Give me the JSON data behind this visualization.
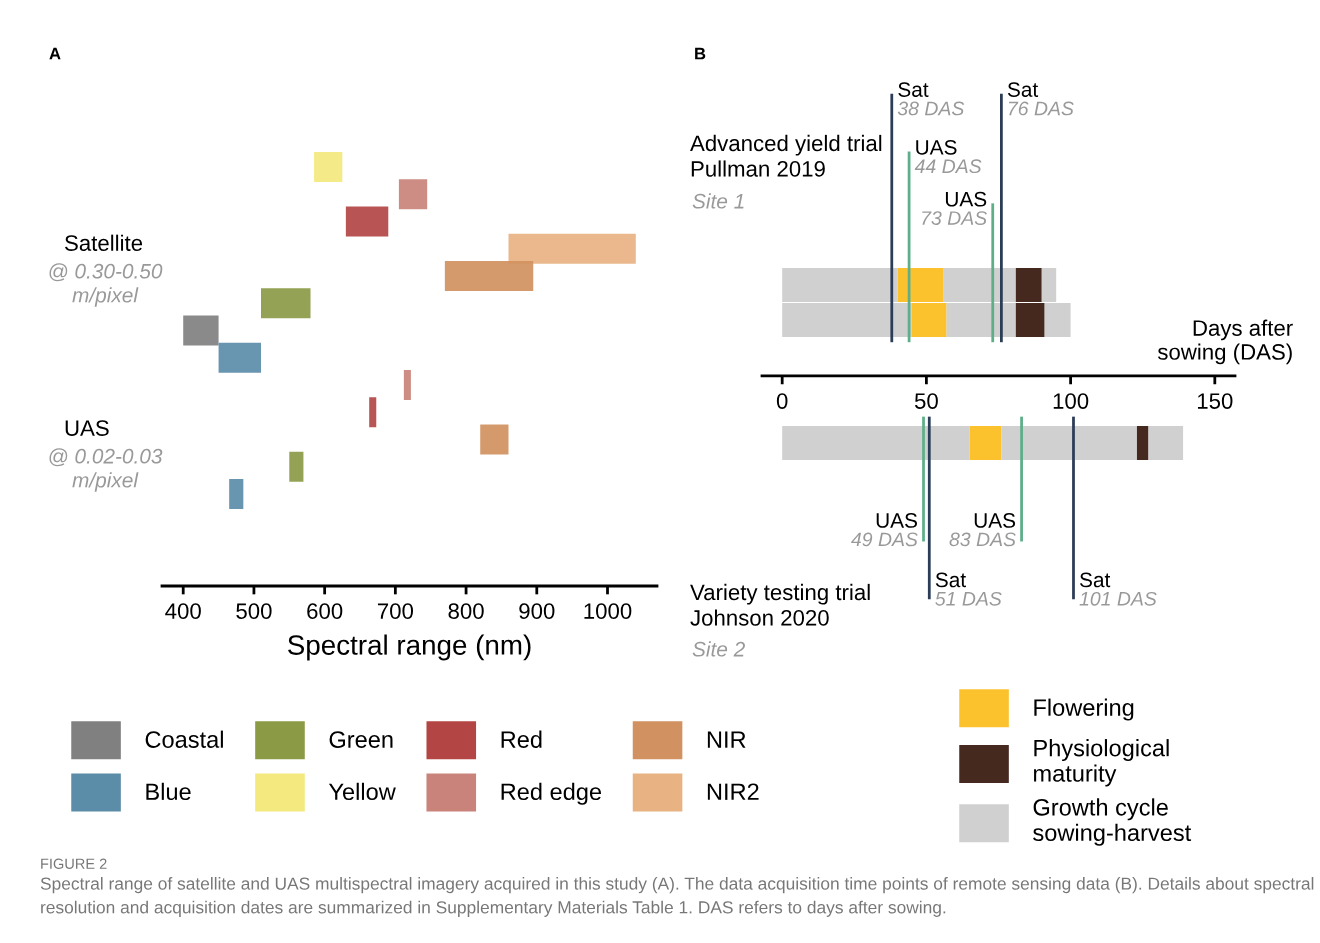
{
  "chart_data": [
    {
      "type": "bar",
      "orientation": "horizontal",
      "xlabel": "Spectral range (nm)",
      "annotations": [
        "A",
        "Satellite",
        "@ 0.30-0.50\nm/pixel",
        "UAS",
        "@ 0.02-0.03\nm/pixel"
      ],
      "categories": [
        null,
        null,
        null,
        null,
        null,
        null,
        null,
        null,
        null,
        null,
        null,
        null,
        null
      ],
      "xlim": [
        370,
        1070
      ],
      "xticks": [
        400,
        500,
        600,
        700,
        800,
        900,
        1000
      ],
      "grid": false,
      "series": [
        {
          "base": [
            585,
            705,
            630,
            860,
            770,
            510,
            400,
            450,
            712,
            663,
            820,
            550,
            465
          ],
          "values": [
            40,
            40,
            60,
            180,
            125,
            70,
            50,
            60,
            10,
            10,
            40,
            20,
            20
          ],
          "colors": [
            "#f3e97e",
            "#c9837a",
            "#b34545",
            "#e8b282",
            "#d19160",
            "#8a9a45",
            "#808080",
            "#5b8ca8",
            "#c9837a",
            "#b34545",
            "#d19160",
            "#8a9a45",
            "#5b8ca8"
          ]
        }
      ]
    },
    {
      "type": "other",
      "categories": [
        "Coastal",
        "Blue",
        "Green",
        "Yellow",
        "Red",
        "Red edge",
        "NIR",
        "NIR2"
      ],
      "colors": [
        "#808080",
        "#5b8ca8",
        "#8a9a45",
        "#f3e97e",
        "#b34545",
        "#c9837a",
        "#d19160",
        "#e8b282"
      ]
    },
    {
      "type": "bar",
      "orientation": "horizontal",
      "xlabel": "Days after\nsowing (DAS)",
      "annotations": [
        "B",
        "Advanced yield trial\nPullman 2019",
        "Site 1",
        "Variety testing trial\nJohnson 2020",
        "Site 2",
        "FIGURE 2",
        "Spectral range of satellite and UAS multispectral imagery acquired in this study (A). The data acquisition time points of remote sensing data (B). Details about spectral resolution and acquisition dates are summarized in Supplementary Materials Table 1. DAS refers to days after sowing."
      ],
      "categories": [
        null,
        null,
        null
      ],
      "xlim": [
        -7,
        157
      ],
      "xticks": [
        0,
        50,
        100,
        150
      ],
      "grid": false,
      "legend": "bottom",
      "stacked": true,
      "series": [
        {
          "name": "Growth cycle\nsowing-harvest",
          "color": "#d0d0d0",
          "values": [
            40,
            45,
            65
          ]
        },
        {
          "name": "Flowering",
          "color": "#fcc22e",
          "values": [
            16,
            12,
            11
          ]
        },
        {
          "color": "#d0d0d0",
          "values": [
            25,
            24,
            47
          ]
        },
        {
          "name": "Physiological\nmaturity",
          "color": "#45291f",
          "values": [
            9,
            10,
            4
          ]
        },
        {
          "color": "#d0d0d0",
          "values": [
            5,
            9,
            12
          ]
        }
      ],
      "ref_lines": [
        {
          "axis": "x",
          "value": 38,
          "label": "Sat\n38 DAS",
          "color": "#2c3d57"
        },
        {
          "axis": "x",
          "value": 44,
          "label": "UAS\n44 DAS",
          "color": "#5fae8a"
        },
        {
          "axis": "x",
          "value": 73,
          "label": "UAS\n73 DAS",
          "color": "#5fae8a"
        },
        {
          "axis": "x",
          "value": 76,
          "label": "Sat\n76 DAS",
          "color": "#2c3d57"
        },
        {
          "axis": "x",
          "value": 49,
          "label": "UAS\n49 DAS",
          "color": "#5fae8a"
        },
        {
          "axis": "x",
          "value": 51,
          "label": "Sat\n51 DAS",
          "color": "#2c3d57"
        },
        {
          "axis": "x",
          "value": 83,
          "label": "UAS\n83 DAS",
          "color": "#5fae8a"
        },
        {
          "axis": "x",
          "value": 101,
          "label": "Sat\n101 DAS",
          "color": "#2c3d57"
        }
      ]
    }
  ]
}
